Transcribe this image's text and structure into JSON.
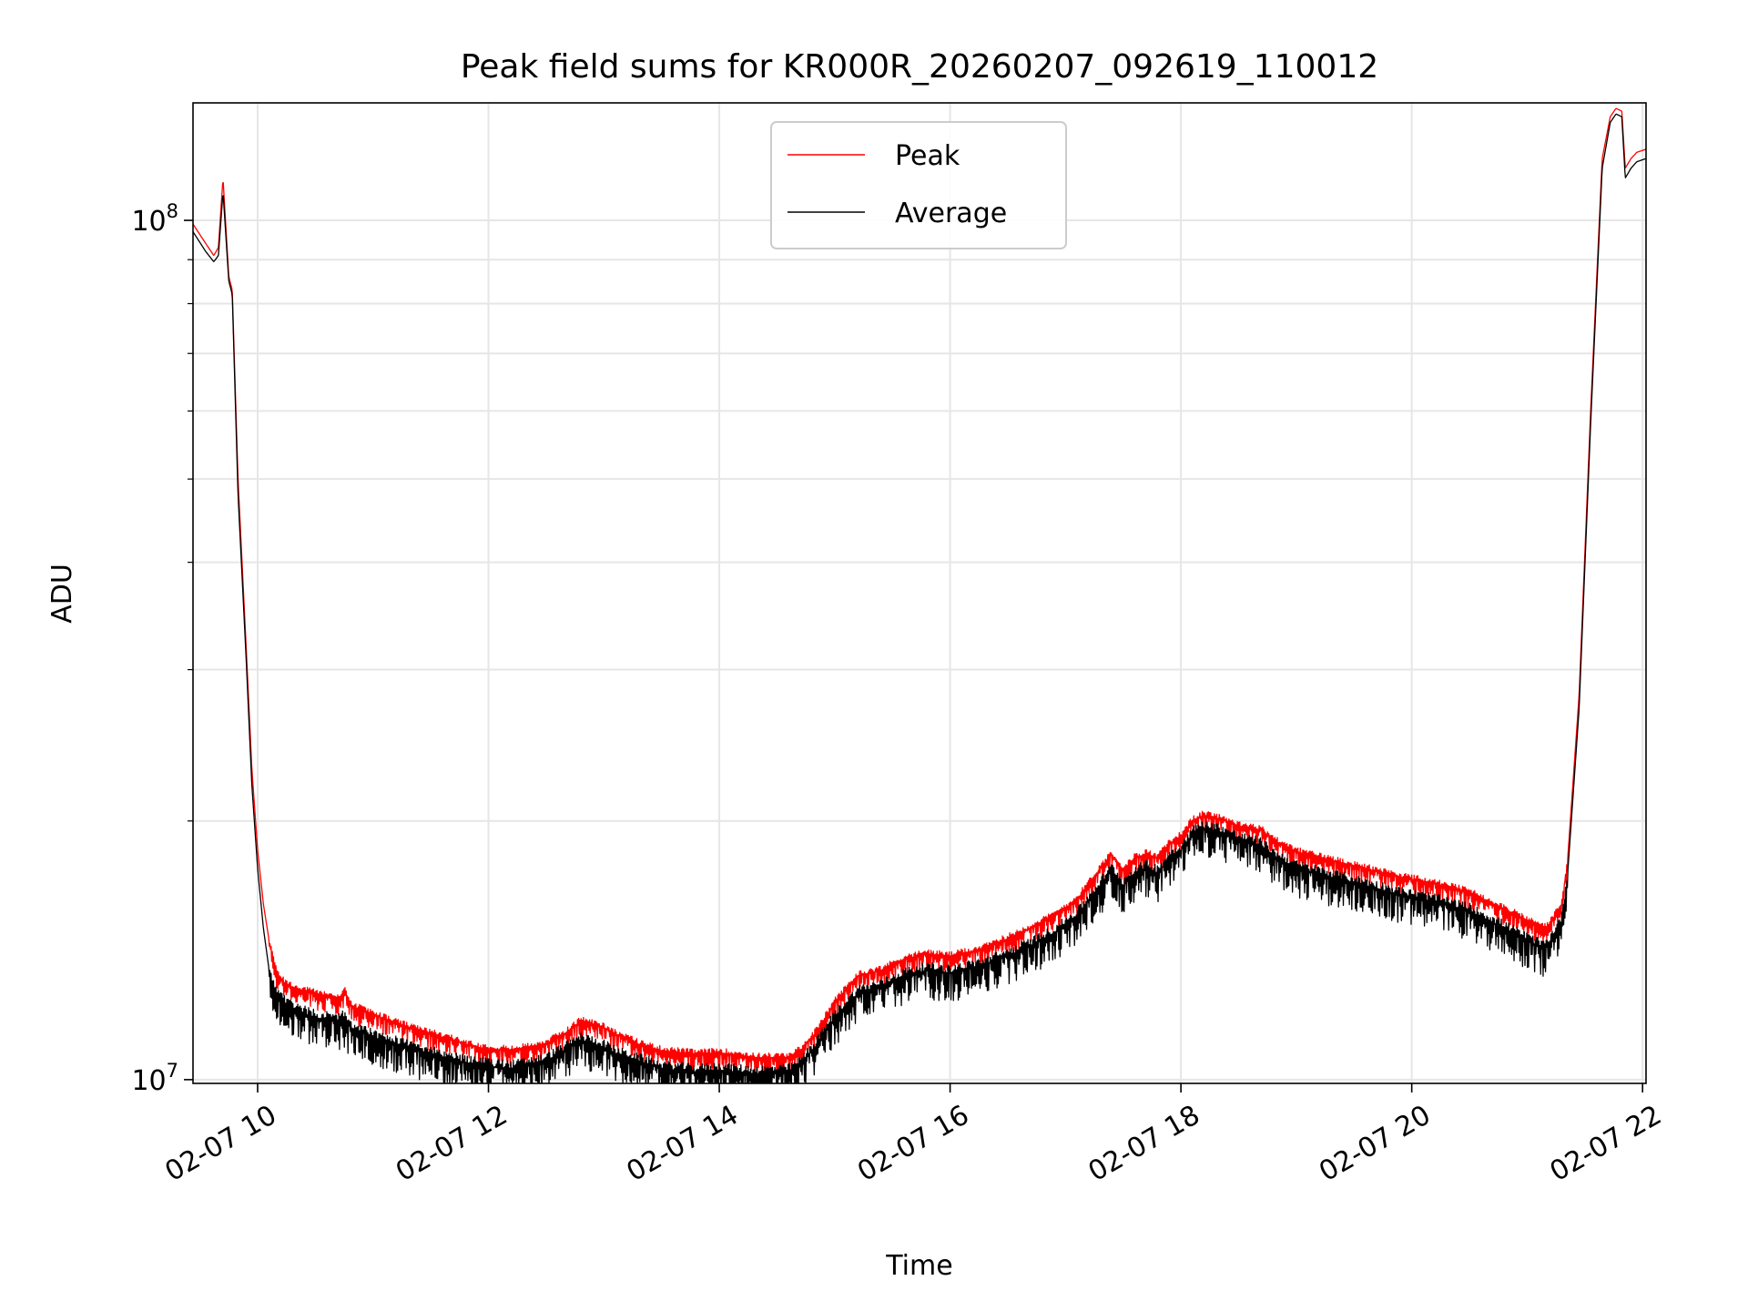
{
  "chart_data": {
    "type": "line",
    "title": "Peak field sums for KR000R_20260207_092619_110012",
    "xlabel": "Time",
    "ylabel": "ADU",
    "xlim": [
      9.44,
      22.03
    ],
    "ylim": [
      9900000.0,
      137000000.0
    ],
    "yscale": "log",
    "grid": true,
    "legend_location": "upper center",
    "x_ticks": [
      {
        "value": 10,
        "label": "02-07 10"
      },
      {
        "value": 12,
        "label": "02-07 12"
      },
      {
        "value": 14,
        "label": "02-07 14"
      },
      {
        "value": 16,
        "label": "02-07 16"
      },
      {
        "value": 18,
        "label": "02-07 18"
      },
      {
        "value": 20,
        "label": "02-07 20"
      },
      {
        "value": 22,
        "label": "02-07 22"
      }
    ],
    "y_major_ticks": [
      {
        "value": 10000000,
        "base": "10",
        "exp": "7"
      },
      {
        "value": 100000000,
        "base": "10",
        "exp": "8"
      }
    ],
    "y_minor_ticks": [
      20000000,
      30000000,
      40000000,
      50000000,
      60000000,
      70000000,
      80000000,
      90000000
    ],
    "series": [
      {
        "name": "Peak",
        "color": "#ff0000",
        "x": [
          9.44,
          9.55,
          9.62,
          9.66,
          9.7,
          9.75,
          9.78,
          9.83,
          9.9,
          9.95,
          10.0,
          10.05,
          10.1,
          10.15,
          10.2,
          10.25,
          10.35,
          10.5,
          10.7,
          10.75,
          10.8,
          11.0,
          11.3,
          11.6,
          11.9,
          12.2,
          12.5,
          12.7,
          12.8,
          12.9,
          13.0,
          13.1,
          13.3,
          13.5,
          13.8,
          14.0,
          14.3,
          14.6,
          14.7,
          14.85,
          15.0,
          15.2,
          15.4,
          15.6,
          15.8,
          16.0,
          16.3,
          16.6,
          16.9,
          17.1,
          17.3,
          17.4,
          17.5,
          17.6,
          17.7,
          17.8,
          17.9,
          18.0,
          18.1,
          18.2,
          18.35,
          18.5,
          18.7,
          18.8,
          19.0,
          19.3,
          19.6,
          19.9,
          20.2,
          20.5,
          20.8,
          21.0,
          21.15,
          21.2,
          21.3,
          21.35,
          21.45,
          21.55,
          21.65,
          21.72,
          21.77,
          21.82,
          21.85,
          21.9,
          21.95,
          22.03
        ],
        "y": [
          99000000,
          94000000,
          91000000,
          93000000,
          112000000,
          86000000,
          83000000,
          50000000,
          32000000,
          23000000,
          18500000,
          16000000,
          14500000,
          13500000,
          13100000,
          12900000,
          12700000,
          12600000,
          12400000,
          12700000,
          12200000,
          11900000,
          11500000,
          11200000,
          10900000,
          10800000,
          11000000,
          11400000,
          11700000,
          11600000,
          11500000,
          11300000,
          11000000,
          10800000,
          10700000,
          10750000,
          10600000,
          10600000,
          10800000,
          11400000,
          12300000,
          13200000,
          13400000,
          13800000,
          14000000,
          13900000,
          14200000,
          14800000,
          15500000,
          16200000,
          17600000,
          18300000,
          17500000,
          18100000,
          18300000,
          18100000,
          18800000,
          19200000,
          20000000,
          20300000,
          20100000,
          19700000,
          19500000,
          19000000,
          18400000,
          18000000,
          17600000,
          17200000,
          16900000,
          16500000,
          15800000,
          15300000,
          15000000,
          15200000,
          16000000,
          18000000,
          28000000,
          60000000,
          118000000,
          132000000,
          135000000,
          134000000,
          115000000,
          118000000,
          120000000,
          121000000
        ]
      },
      {
        "name": "Average",
        "color": "#000000",
        "x": [
          9.44,
          9.55,
          9.62,
          9.66,
          9.7,
          9.75,
          9.78,
          9.83,
          9.9,
          9.95,
          10.0,
          10.05,
          10.1,
          10.15,
          10.2,
          10.25,
          10.35,
          10.5,
          10.7,
          10.75,
          10.8,
          11.0,
          11.3,
          11.6,
          11.9,
          12.2,
          12.5,
          12.7,
          12.8,
          12.9,
          13.0,
          13.1,
          13.3,
          13.5,
          13.8,
          14.0,
          14.3,
          14.6,
          14.7,
          14.85,
          15.0,
          15.2,
          15.4,
          15.6,
          15.8,
          16.0,
          16.3,
          16.6,
          16.9,
          17.1,
          17.3,
          17.4,
          17.5,
          17.6,
          17.7,
          17.8,
          17.9,
          18.0,
          18.1,
          18.2,
          18.35,
          18.5,
          18.7,
          18.8,
          19.0,
          19.3,
          19.6,
          19.9,
          20.2,
          20.5,
          20.8,
          21.0,
          21.15,
          21.2,
          21.3,
          21.35,
          21.45,
          21.55,
          21.65,
          21.72,
          21.77,
          21.82,
          21.85,
          21.9,
          21.95,
          22.03
        ],
        "y": [
          97000000,
          92000000,
          89500000,
          91000000,
          108000000,
          85000000,
          82000000,
          48000000,
          31000000,
          22000000,
          17600000,
          15000000,
          13400000,
          12700000,
          12400000,
          12200000,
          12000000,
          11800000,
          11700000,
          11800000,
          11500000,
          11200000,
          10900000,
          10600000,
          10400000,
          10300000,
          10500000,
          10900000,
          11100000,
          11000000,
          10900000,
          10700000,
          10500000,
          10300000,
          10200000,
          10250000,
          10150000,
          10200000,
          10400000,
          11000000,
          11800000,
          12600000,
          12800000,
          13200000,
          13400000,
          13300000,
          13600000,
          14100000,
          14800000,
          15500000,
          16800000,
          17500000,
          16800000,
          17400000,
          17600000,
          17400000,
          18100000,
          18500000,
          19300000,
          19600000,
          19400000,
          19000000,
          18700000,
          18200000,
          17600000,
          17200000,
          16800000,
          16400000,
          16100000,
          15700000,
          15000000,
          14500000,
          14200000,
          14500000,
          15300000,
          17300000,
          27000000,
          58000000,
          115000000,
          130000000,
          133000000,
          132000000,
          112000000,
          115000000,
          117000000,
          118000000
        ]
      }
    ]
  }
}
